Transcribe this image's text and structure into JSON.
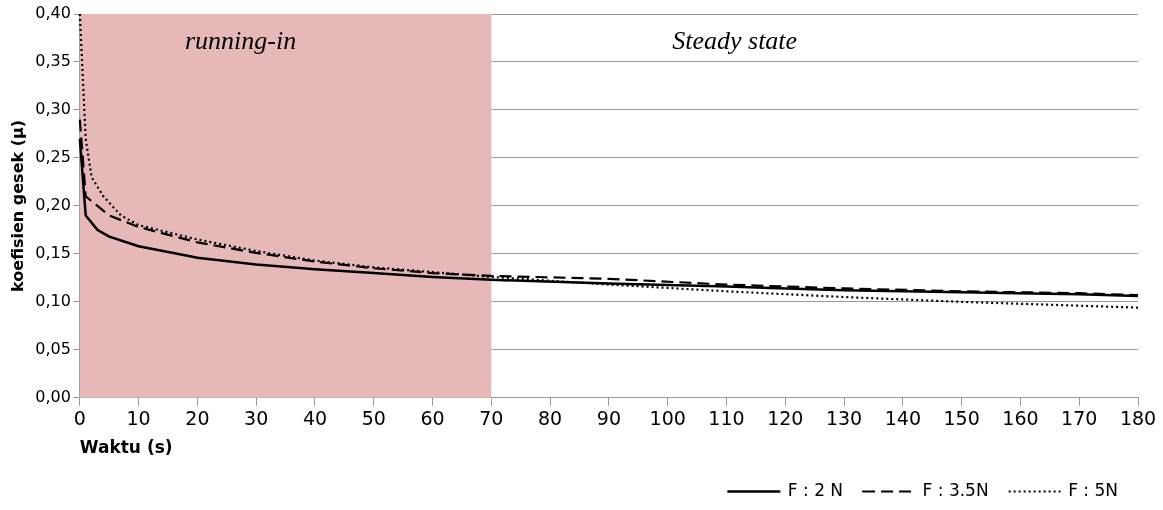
{
  "chart_data": {
    "type": "line",
    "xlabel": "Waktu (s)",
    "ylabel": "koefisien gesek (µ)",
    "xlim": [
      0,
      180
    ],
    "xticks": [
      0,
      10,
      20,
      30,
      40,
      50,
      60,
      70,
      80,
      90,
      100,
      110,
      120,
      130,
      140,
      150,
      160,
      170,
      180
    ],
    "ylim": [
      0,
      0.4
    ],
    "yticks": [
      {
        "value": 0,
        "label": "0,00"
      },
      {
        "value": 0.05,
        "label": "0,05"
      },
      {
        "value": 0.1,
        "label": "0,10"
      },
      {
        "value": 0.15,
        "label": "0,15"
      },
      {
        "value": 0.2,
        "label": "0,20"
      },
      {
        "value": 0.25,
        "label": "0,25"
      },
      {
        "value": 0.3,
        "label": "0,30"
      },
      {
        "value": 0.35,
        "label": "0,35"
      },
      {
        "value": 0.4,
        "label": "0,40"
      }
    ],
    "grid": "y",
    "legend": "bottom right",
    "marker": "none",
    "bands": [
      {
        "axis": "x",
        "from": 0,
        "to": 70,
        "color": "#e6b8b7",
        "label": "running-in"
      }
    ],
    "annotations": [
      "Steady state"
    ],
    "series": [
      {
        "name": "F : 2 N",
        "color": "#000000",
        "line_style": "solid",
        "x": [
          0,
          1,
          3,
          5,
          10,
          20,
          30,
          40,
          50,
          60,
          70,
          90,
          110,
          130,
          150,
          170,
          180
        ],
        "values": [
          0.27,
          0.19,
          0.175,
          0.168,
          0.158,
          0.146,
          0.139,
          0.134,
          0.13,
          0.126,
          0.123,
          0.119,
          0.116,
          0.112,
          0.11,
          0.108,
          0.106
        ]
      },
      {
        "name": "F : 3.5N",
        "color": "#000000",
        "line_style": "dashed",
        "x": [
          0,
          1,
          3,
          5,
          10,
          20,
          30,
          40,
          50,
          60,
          70,
          90,
          110,
          130,
          150,
          170,
          180
        ],
        "values": [
          0.29,
          0.21,
          0.2,
          0.19,
          0.178,
          0.162,
          0.151,
          0.142,
          0.135,
          0.13,
          0.127,
          0.124,
          0.118,
          0.114,
          0.111,
          0.109,
          0.107
        ]
      },
      {
        "name": "F : 5N",
        "color": "#000000",
        "line_style": "dotted",
        "x": [
          0,
          1,
          2,
          4,
          7,
          10,
          20,
          30,
          40,
          50,
          60,
          70,
          90,
          110,
          130,
          150,
          170,
          180
        ],
        "values": [
          0.4,
          0.27,
          0.23,
          0.21,
          0.19,
          0.18,
          0.165,
          0.153,
          0.143,
          0.136,
          0.131,
          0.126,
          0.118,
          0.111,
          0.105,
          0.1,
          0.096,
          0.094
        ]
      }
    ]
  }
}
